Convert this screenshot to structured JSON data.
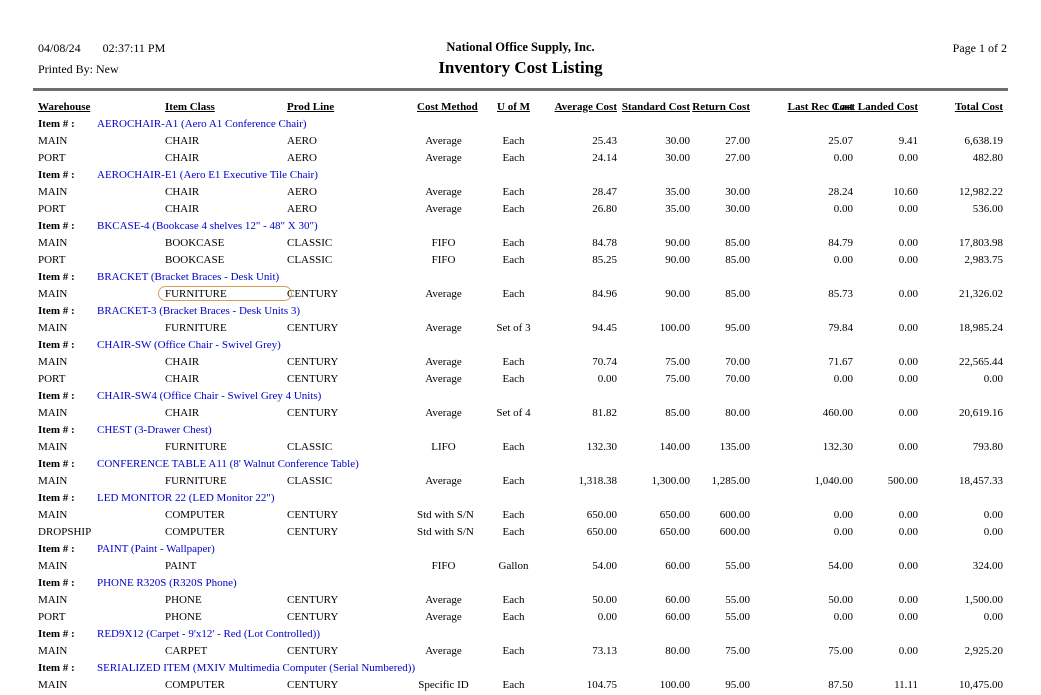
{
  "report": {
    "date": "04/08/24",
    "time": "02:37:11 PM",
    "printed_by_label": "Printed By:",
    "printed_by_value": "New",
    "company": "National Office Supply, Inc.",
    "title": "Inventory Cost Listing",
    "page_indicator": "Page 1 of  2"
  },
  "colors": {
    "item_link": "#0000cc",
    "highlight_border": "#d89c5c",
    "divider": "#6e6e6e"
  },
  "table": {
    "item_label": "Item # :",
    "columns": [
      {
        "label": "Warehouse",
        "align": "left"
      },
      {
        "label": "Item Class",
        "align": "left"
      },
      {
        "label": "Prod Line",
        "align": "left"
      },
      {
        "label": "Cost Method",
        "align": "center"
      },
      {
        "label": "U of M",
        "align": "center"
      },
      {
        "label": "Average Cost",
        "align": "right"
      },
      {
        "label": "Standard Cost",
        "align": "right"
      },
      {
        "label": "Return Cost",
        "align": "right"
      },
      {
        "label": "Last Rec Cost",
        "align": "right"
      },
      {
        "label": "Last Landed Cost",
        "align": "right"
      },
      {
        "label": "Total Cost",
        "align": "right"
      }
    ],
    "highlight": {
      "group": 3,
      "row": 0,
      "col": 1
    },
    "groups": [
      {
        "item": "AEROCHAIR-A1 (Aero A1 Conference Chair)",
        "rows": [
          [
            "MAIN",
            "CHAIR",
            "AERO",
            "Average",
            "Each",
            "25.43",
            "30.00",
            "27.00",
            "25.07",
            "9.41",
            "6,638.19"
          ],
          [
            "PORT",
            "CHAIR",
            "AERO",
            "Average",
            "Each",
            "24.14",
            "30.00",
            "27.00",
            "0.00",
            "0.00",
            "482.80"
          ]
        ]
      },
      {
        "item": "AEROCHAIR-E1 (Aero E1 Executive Tile Chair)",
        "rows": [
          [
            "MAIN",
            "CHAIR",
            "AERO",
            "Average",
            "Each",
            "28.47",
            "35.00",
            "30.00",
            "28.24",
            "10.60",
            "12,982.22"
          ],
          [
            "PORT",
            "CHAIR",
            "AERO",
            "Average",
            "Each",
            "26.80",
            "35.00",
            "30.00",
            "0.00",
            "0.00",
            "536.00"
          ]
        ]
      },
      {
        "item": "BKCASE-4 (Bookcase 4 shelves 12\" - 48\" X 30\")",
        "rows": [
          [
            "MAIN",
            "BOOKCASE",
            "CLASSIC",
            "FIFO",
            "Each",
            "84.78",
            "90.00",
            "85.00",
            "84.79",
            "0.00",
            "17,803.98"
          ],
          [
            "PORT",
            "BOOKCASE",
            "CLASSIC",
            "FIFO",
            "Each",
            "85.25",
            "90.00",
            "85.00",
            "0.00",
            "0.00",
            "2,983.75"
          ]
        ]
      },
      {
        "item": "BRACKET (Bracket Braces - Desk Unit)",
        "rows": [
          [
            "MAIN",
            "FURNITURE",
            "CENTURY",
            "Average",
            "Each",
            "84.96",
            "90.00",
            "85.00",
            "85.73",
            "0.00",
            "21,326.02"
          ]
        ]
      },
      {
        "item": "BRACKET-3 (Bracket Braces - Desk Units 3)",
        "rows": [
          [
            "MAIN",
            "FURNITURE",
            "CENTURY",
            "Average",
            "Set of 3",
            "94.45",
            "100.00",
            "95.00",
            "79.84",
            "0.00",
            "18,985.24"
          ]
        ]
      },
      {
        "item": "CHAIR-SW (Office Chair - Swivel Grey)",
        "rows": [
          [
            "MAIN",
            "CHAIR",
            "CENTURY",
            "Average",
            "Each",
            "70.74",
            "75.00",
            "70.00",
            "71.67",
            "0.00",
            "22,565.44"
          ],
          [
            "PORT",
            "CHAIR",
            "CENTURY",
            "Average",
            "Each",
            "0.00",
            "75.00",
            "70.00",
            "0.00",
            "0.00",
            "0.00"
          ]
        ]
      },
      {
        "item": "CHAIR-SW4 (Office Chair - Swivel Grey 4 Units)",
        "rows": [
          [
            "MAIN",
            "CHAIR",
            "CENTURY",
            "Average",
            "Set of 4",
            "81.82",
            "85.00",
            "80.00",
            "460.00",
            "0.00",
            "20,619.16"
          ]
        ]
      },
      {
        "item": "CHEST (3-Drawer Chest)",
        "rows": [
          [
            "MAIN",
            "FURNITURE",
            "CLASSIC",
            "LIFO",
            "Each",
            "132.30",
            "140.00",
            "135.00",
            "132.30",
            "0.00",
            "793.80"
          ]
        ]
      },
      {
        "item": "CONFERENCE TABLE A11 (8' Walnut Conference Table)",
        "rows": [
          [
            "MAIN",
            "FURNITURE",
            "CLASSIC",
            "Average",
            "Each",
            "1,318.38",
            "1,300.00",
            "1,285.00",
            "1,040.00",
            "500.00",
            "18,457.33"
          ]
        ]
      },
      {
        "item": "LED MONITOR 22 (LED Monitor 22\")",
        "rows": [
          [
            "MAIN",
            "COMPUTER",
            "CENTURY",
            "Std with S/N",
            "Each",
            "650.00",
            "650.00",
            "600.00",
            "0.00",
            "0.00",
            "0.00"
          ],
          [
            "DROPSHIP",
            "COMPUTER",
            "CENTURY",
            "Std with S/N",
            "Each",
            "650.00",
            "650.00",
            "600.00",
            "0.00",
            "0.00",
            "0.00"
          ]
        ]
      },
      {
        "item": "PAINT (Paint - Wallpaper)",
        "rows": [
          [
            "MAIN",
            "PAINT",
            "",
            "FIFO",
            "Gallon",
            "54.00",
            "60.00",
            "55.00",
            "54.00",
            "0.00",
            "324.00"
          ]
        ]
      },
      {
        "item": "PHONE R320S (R320S Phone)",
        "rows": [
          [
            "MAIN",
            "PHONE",
            "CENTURY",
            "Average",
            "Each",
            "50.00",
            "60.00",
            "55.00",
            "50.00",
            "0.00",
            "1,500.00"
          ],
          [
            "PORT",
            "PHONE",
            "CENTURY",
            "Average",
            "Each",
            "0.00",
            "60.00",
            "55.00",
            "0.00",
            "0.00",
            "0.00"
          ]
        ]
      },
      {
        "item": "RED9X12 (Carpet - 9'x12' - Red (Lot Controlled))",
        "rows": [
          [
            "MAIN",
            "CARPET",
            "CENTURY",
            "Average",
            "Each",
            "73.13",
            "80.00",
            "75.00",
            "75.00",
            "0.00",
            "2,925.20"
          ]
        ]
      },
      {
        "item": "SERIALIZED ITEM (MXIV Multimedia Computer (Serial Numbered))",
        "rows": [
          [
            "MAIN",
            "COMPUTER",
            "CENTURY",
            "Specific ID",
            "Each",
            "104.75",
            "100.00",
            "95.00",
            "87.50",
            "11.11",
            "10,475.00"
          ]
        ]
      }
    ]
  }
}
